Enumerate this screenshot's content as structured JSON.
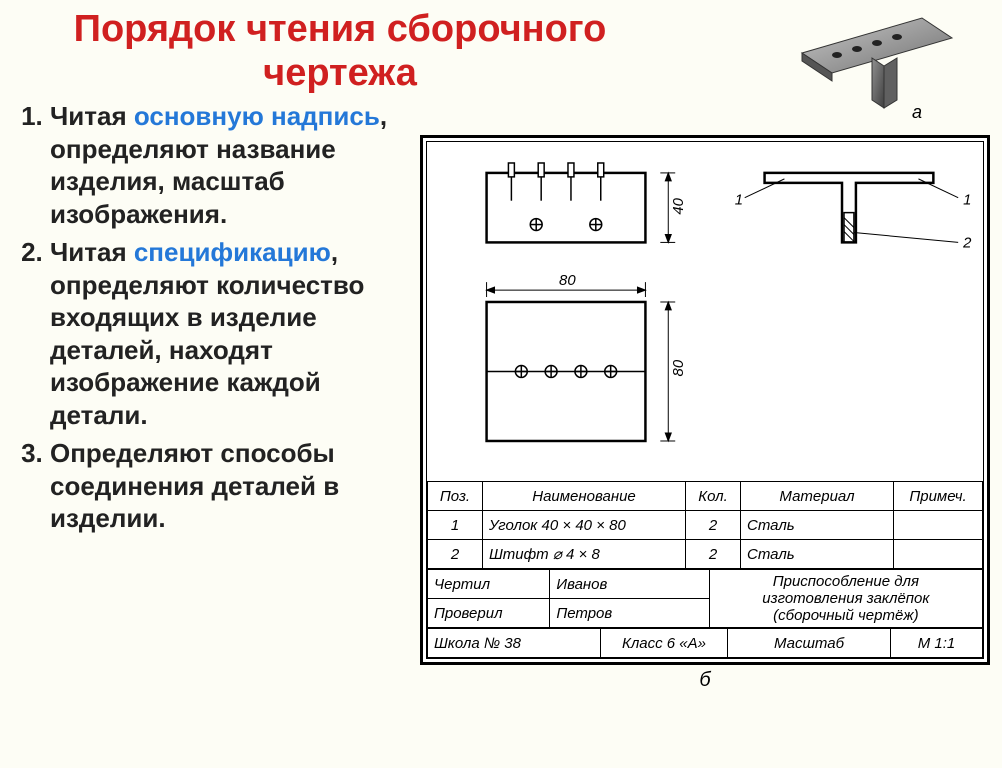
{
  "title": "Порядок чтения сборочного\nчертежа",
  "list": {
    "item1_a": "Читая ",
    "item1_hl": "основную надпись",
    "item1_b": ", определяют название изделия, масштаб изображения.",
    "item2_a": "Читая ",
    "item2_hl": "спецификацию",
    "item2_b": ", определяют количество входящих в изделие деталей, находят изображение каждой детали.",
    "item3": "Определяют способы соединения деталей в изделии."
  },
  "iso_label": "а",
  "views": {
    "dim_w": "80",
    "dim_h1": "40",
    "dim_h2": "80",
    "callout1": "1",
    "callout2": "2"
  },
  "spec": {
    "headers": [
      "Поз.",
      "Наименование",
      "Кол.",
      "Материал",
      "Примеч."
    ],
    "rows": [
      [
        "1",
        "Уголок 40 × 40 × 80",
        "2",
        "Сталь",
        ""
      ],
      [
        "2",
        "Штифт ⌀ 4 × 8",
        "2",
        "Сталь",
        ""
      ]
    ]
  },
  "titleblock": {
    "r1c1": "Чертил",
    "r1c2": "Иванов",
    "r2c1": "Проверил",
    "r2c2": "Петров",
    "desc1": "Приспособление для",
    "desc2": "изготовления заклёпок",
    "desc3": "(сборочный чертёж)",
    "r3c1": "Школа № 38",
    "r3c2": "Класс 6 «А»",
    "r3c3": "Масштаб",
    "r3c4": "М 1:1"
  },
  "bottom_label": "б",
  "colors": {
    "title": "#d02020",
    "highlight": "#2478d8",
    "line": "#000000",
    "bg": "#fdfdf5"
  }
}
